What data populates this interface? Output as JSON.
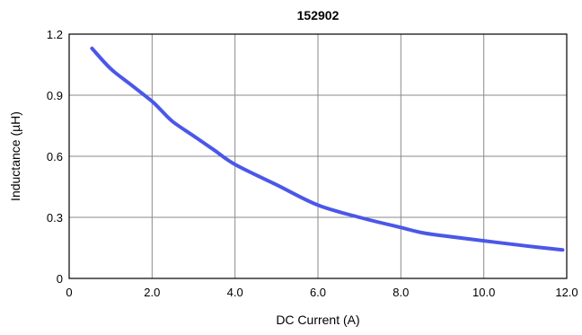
{
  "chart_data": {
    "type": "line",
    "title": "152902",
    "xlabel": "DC Current (A)",
    "ylabel": "Inductance (µH)",
    "xlim": [
      0,
      12.0
    ],
    "ylim": [
      0,
      1.2
    ],
    "x_ticks": [
      0,
      2.0,
      4.0,
      6.0,
      8.0,
      10.0,
      12.0
    ],
    "x_tick_labels": [
      "0",
      "2.0",
      "4.0",
      "6.0",
      "8.0",
      "10.0",
      "12.0"
    ],
    "y_ticks": [
      0,
      0.3,
      0.6,
      0.9,
      1.2
    ],
    "y_tick_labels": [
      "0",
      "0.3",
      "0.6",
      "0.9",
      "1.2"
    ],
    "grid": true,
    "legend": "none",
    "series": [
      {
        "color": "#4b57e8",
        "x": [
          0.55,
          1.0,
          1.5,
          2.0,
          2.2,
          2.5,
          3.0,
          3.5,
          4.0,
          5.0,
          6.0,
          7.0,
          8.0,
          8.5,
          9.0,
          10.0,
          11.0,
          11.9
        ],
        "y": [
          1.13,
          1.03,
          0.95,
          0.87,
          0.83,
          0.77,
          0.7,
          0.63,
          0.56,
          0.46,
          0.36,
          0.3,
          0.25,
          0.225,
          0.21,
          0.185,
          0.16,
          0.14
        ]
      }
    ]
  }
}
